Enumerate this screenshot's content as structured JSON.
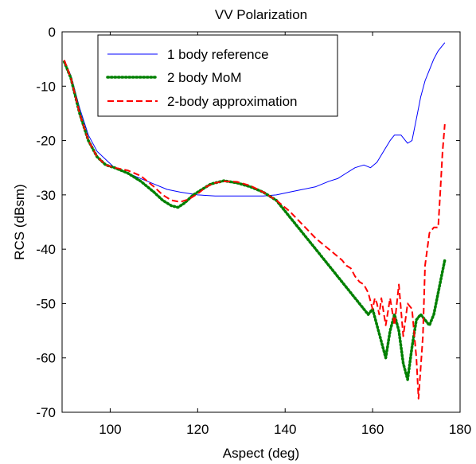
{
  "chart_data": {
    "type": "line",
    "title": "VV Polarization",
    "xlabel": "Aspect (deg)",
    "ylabel": "RCS (dBsm)",
    "xlim": [
      89,
      180
    ],
    "ylim": [
      -70,
      0
    ],
    "xticks": [
      100,
      120,
      140,
      160,
      180
    ],
    "yticks": [
      0,
      -10,
      -20,
      -30,
      -40,
      -50,
      -60,
      -70
    ],
    "grid": false,
    "legend_position": "top-left",
    "series": [
      {
        "name": "1 body reference",
        "color": "#0000ff",
        "dash": "solid",
        "points": [
          [
            89.5,
            -5.5
          ],
          [
            91,
            -8
          ],
          [
            93,
            -14
          ],
          [
            95,
            -19
          ],
          [
            97,
            -22
          ],
          [
            99,
            -23.5
          ],
          [
            101,
            -25
          ],
          [
            104,
            -26
          ],
          [
            107,
            -27
          ],
          [
            110,
            -28
          ],
          [
            113,
            -29
          ],
          [
            116,
            -29.5
          ],
          [
            120,
            -30
          ],
          [
            124,
            -30.2
          ],
          [
            128,
            -30.2
          ],
          [
            132,
            -30.2
          ],
          [
            135,
            -30.2
          ],
          [
            138,
            -30
          ],
          [
            141,
            -29.5
          ],
          [
            144,
            -29
          ],
          [
            147,
            -28.5
          ],
          [
            150,
            -27.5
          ],
          [
            152,
            -27
          ],
          [
            154,
            -26
          ],
          [
            156,
            -25
          ],
          [
            158,
            -24.5
          ],
          [
            159.5,
            -25
          ],
          [
            161,
            -24
          ],
          [
            162.5,
            -22
          ],
          [
            164,
            -20
          ],
          [
            165,
            -19
          ],
          [
            166.5,
            -19
          ],
          [
            167.5,
            -20
          ],
          [
            168,
            -20.5
          ],
          [
            169,
            -20
          ],
          [
            170,
            -16
          ],
          [
            171,
            -12
          ],
          [
            172,
            -9
          ],
          [
            173,
            -7
          ],
          [
            174,
            -5
          ],
          [
            175,
            -3.5
          ],
          [
            176,
            -2.5
          ],
          [
            176.5,
            -2
          ]
        ]
      },
      {
        "name": "2 body MoM",
        "color": "#008000",
        "dash": "dotted",
        "points": [
          [
            89.5,
            -5.5
          ],
          [
            91,
            -8.5
          ],
          [
            93,
            -15
          ],
          [
            95,
            -20
          ],
          [
            97,
            -23
          ],
          [
            99,
            -24.5
          ],
          [
            101,
            -25
          ],
          [
            104,
            -26
          ],
          [
            107,
            -27.5
          ],
          [
            110,
            -29.5
          ],
          [
            112,
            -31
          ],
          [
            114,
            -32
          ],
          [
            115.5,
            -32.3
          ],
          [
            117,
            -31.5
          ],
          [
            119,
            -30
          ],
          [
            121,
            -29
          ],
          [
            123,
            -28
          ],
          [
            126,
            -27.4
          ],
          [
            129,
            -27.8
          ],
          [
            132,
            -28.5
          ],
          [
            135,
            -29.5
          ],
          [
            138,
            -31
          ],
          [
            141,
            -34
          ],
          [
            144,
            -37
          ],
          [
            147,
            -40
          ],
          [
            150,
            -43
          ],
          [
            153,
            -46
          ],
          [
            156,
            -49
          ],
          [
            158,
            -51
          ],
          [
            159,
            -52
          ],
          [
            160,
            -51
          ],
          [
            161,
            -54
          ],
          [
            162,
            -57
          ],
          [
            163,
            -60
          ],
          [
            164,
            -55
          ],
          [
            165,
            -52
          ],
          [
            166,
            -55
          ],
          [
            167,
            -61
          ],
          [
            168,
            -64
          ],
          [
            169,
            -58
          ],
          [
            170,
            -53
          ],
          [
            171,
            -52
          ],
          [
            172,
            -53
          ],
          [
            173,
            -54
          ],
          [
            174,
            -52
          ],
          [
            175,
            -48
          ],
          [
            176,
            -44
          ],
          [
            176.5,
            -42
          ]
        ]
      },
      {
        "name": "2-body approximation",
        "color": "#ff0000",
        "dash": "dashed",
        "points": [
          [
            89.5,
            -5.2
          ],
          [
            91,
            -8.5
          ],
          [
            93,
            -15
          ],
          [
            95,
            -20
          ],
          [
            97,
            -23
          ],
          [
            99,
            -24.5
          ],
          [
            101,
            -25
          ],
          [
            104,
            -25.5
          ],
          [
            107,
            -26.5
          ],
          [
            110,
            -28.5
          ],
          [
            112,
            -30
          ],
          [
            114,
            -31
          ],
          [
            116,
            -31.3
          ],
          [
            118,
            -30.8
          ],
          [
            120,
            -29.8
          ],
          [
            122,
            -28.5
          ],
          [
            124,
            -27.8
          ],
          [
            126,
            -27.5
          ],
          [
            129,
            -27.6
          ],
          [
            132,
            -28.3
          ],
          [
            135,
            -29.5
          ],
          [
            138,
            -31
          ],
          [
            141,
            -33
          ],
          [
            144,
            -35.5
          ],
          [
            147,
            -38
          ],
          [
            150,
            -40
          ],
          [
            153,
            -42
          ],
          [
            154,
            -43
          ],
          [
            155,
            -43.5
          ],
          [
            156,
            -45
          ],
          [
            157,
            -46
          ],
          [
            158,
            -46.5
          ],
          [
            159,
            -48
          ],
          [
            160,
            -51
          ],
          [
            160.5,
            -49
          ],
          [
            161,
            -50
          ],
          [
            161.5,
            -52
          ],
          [
            162,
            -49
          ],
          [
            163,
            -54
          ],
          [
            164,
            -49
          ],
          [
            165,
            -54
          ],
          [
            166,
            -46.5
          ],
          [
            167,
            -56
          ],
          [
            168,
            -50
          ],
          [
            169,
            -51
          ],
          [
            170,
            -60
          ],
          [
            170.5,
            -67.5
          ],
          [
            171.5,
            -56
          ],
          [
            172,
            -43
          ],
          [
            173,
            -37
          ],
          [
            174,
            -36
          ],
          [
            175,
            -36
          ],
          [
            175.5,
            -29
          ],
          [
            176,
            -22
          ],
          [
            176.5,
            -17
          ]
        ]
      }
    ]
  }
}
